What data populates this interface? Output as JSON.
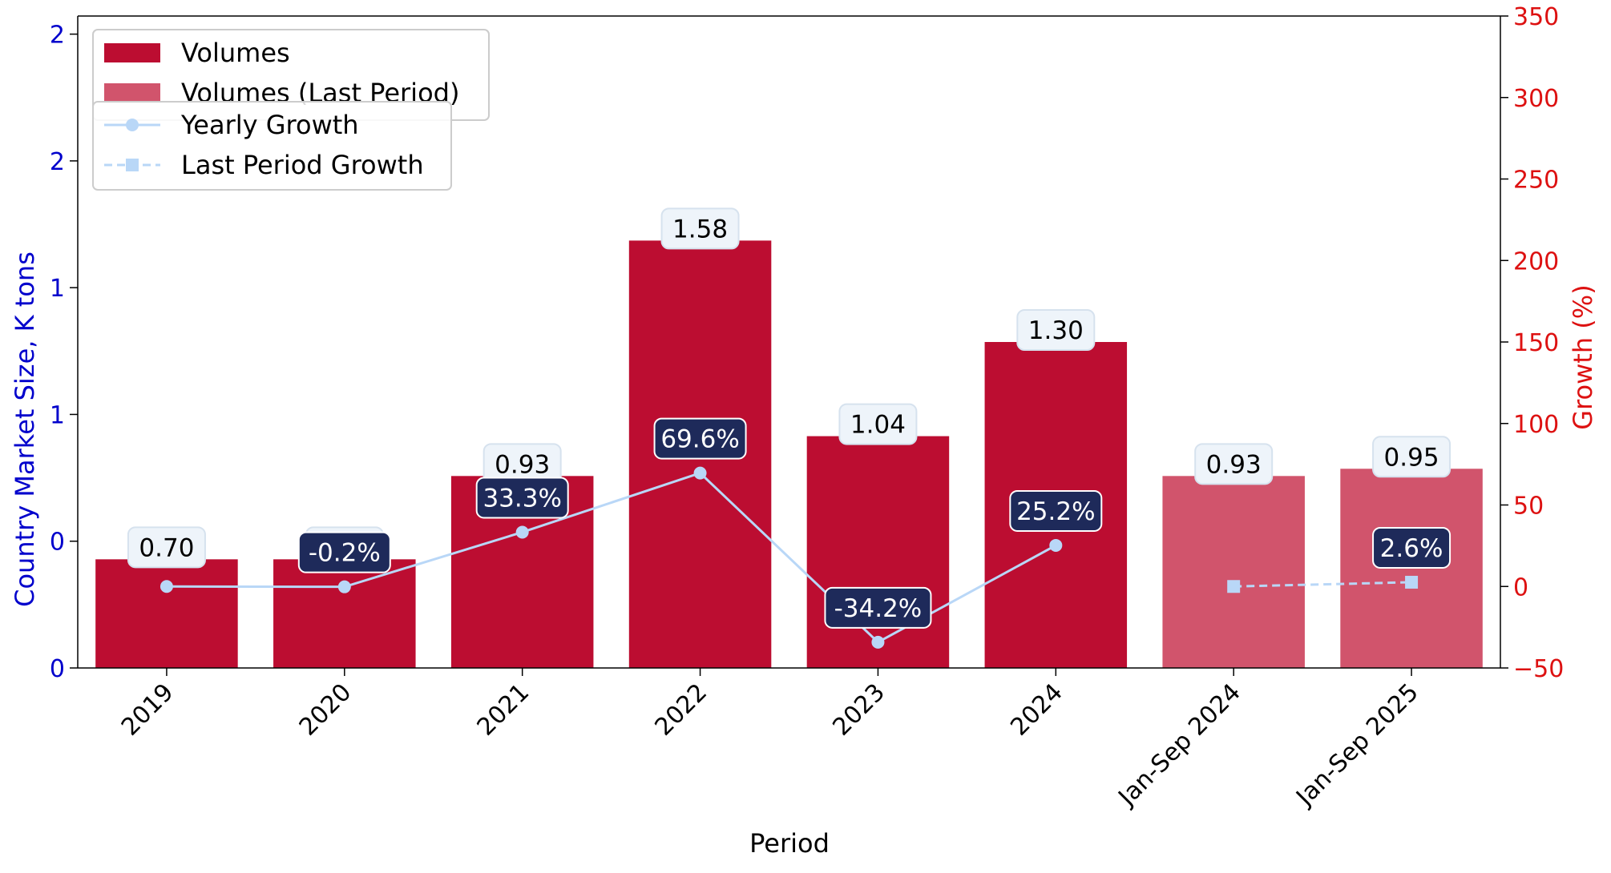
{
  "chart_data": {
    "type": "bar",
    "categories": [
      "2019",
      "2020",
      "2021",
      "2022",
      "2023",
      "2024",
      "Jan-Sep 2024",
      "Jan-Sep 2025"
    ],
    "series": [
      {
        "name": "Volumes",
        "kind": "bar",
        "axis": "left",
        "color": "#bc0d31",
        "values": [
          0.7,
          0.7,
          0.93,
          1.58,
          1.04,
          1.3,
          null,
          null
        ],
        "labels": [
          "0.70",
          "0.70",
          "0.93",
          "1.58",
          "1.04",
          "1.30",
          null,
          null
        ]
      },
      {
        "name": "Volumes (Last Period)",
        "kind": "bar",
        "axis": "left",
        "color": "#d1546c",
        "values": [
          null,
          null,
          null,
          null,
          null,
          null,
          0.93,
          0.95
        ],
        "labels": [
          null,
          null,
          null,
          null,
          null,
          null,
          "0.93",
          "0.95"
        ]
      },
      {
        "name": "Yearly Growth",
        "kind": "line",
        "axis": "right",
        "color": "#b9d7f7",
        "marker": "circle",
        "values": [
          0,
          -0.2,
          33.3,
          69.6,
          -34.2,
          25.2,
          null,
          null
        ],
        "labels": [
          null,
          "-0.2%",
          "33.3%",
          "69.6%",
          "-34.2%",
          "25.2%",
          null,
          null
        ]
      },
      {
        "name": "Last Period Growth",
        "kind": "line",
        "dashed": true,
        "axis": "right",
        "color": "#b9d7f7",
        "marker": "square",
        "values": [
          null,
          null,
          null,
          null,
          null,
          null,
          0,
          2.6
        ],
        "labels": [
          null,
          null,
          null,
          null,
          null,
          null,
          null,
          "2.6%"
        ]
      }
    ],
    "xlabel": "Period",
    "ylabel_left": "Country Market Size, K tons",
    "ylabel_right": "Growth (%)",
    "ylim_left": [
      0.4,
      2.2
    ],
    "yticks_left": {
      "values": [
        0.4,
        0.75,
        1.1,
        1.45,
        1.8,
        2.15
      ],
      "labels": [
        "0",
        "0",
        "1",
        "1",
        "2",
        "2"
      ]
    },
    "ylim_right": [
      -50,
      350
    ],
    "yticks_right": [
      -50,
      0,
      50,
      100,
      150,
      200,
      250,
      300,
      350
    ],
    "left_axis_color": "#0000cc",
    "right_axis_color": "#dd1111",
    "value_label_bg": "#eef4fa",
    "growth_label_bg": "#1e2a5a",
    "grid": false,
    "legend_placement": "top-left"
  }
}
